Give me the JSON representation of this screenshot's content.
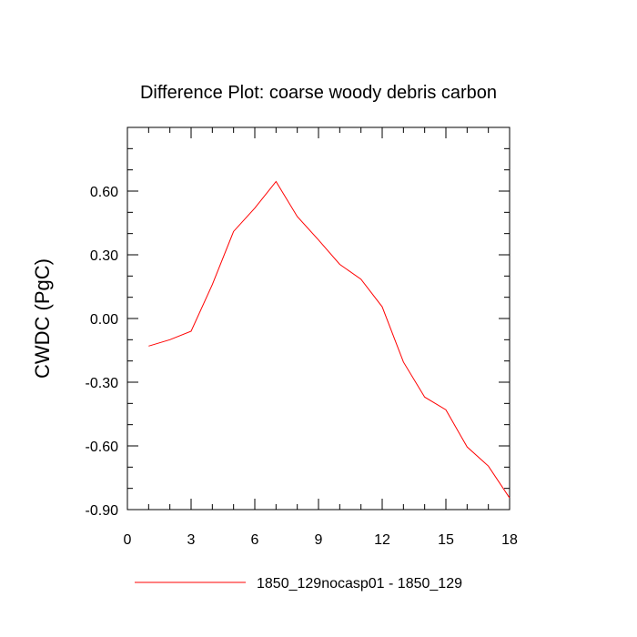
{
  "chart_data": {
    "type": "line",
    "title": "Difference Plot: coarse woody debris carbon",
    "xlabel": "",
    "ylabel": "CWDC  (PgC)",
    "xlim": [
      0,
      18
    ],
    "ylim": [
      -0.9,
      0.9
    ],
    "x_ticks": [
      0,
      3,
      6,
      9,
      12,
      15,
      18
    ],
    "x_tick_labels": [
      "0",
      "3",
      "6",
      "9",
      "12",
      "15",
      "18"
    ],
    "y_ticks": [
      -0.9,
      -0.6,
      -0.3,
      0.0,
      0.3,
      0.6
    ],
    "y_tick_labels": [
      "-0.90",
      "-0.60",
      "-0.30",
      "0.00",
      "0.30",
      "0.60"
    ],
    "grid": false,
    "legend_position": "bottom",
    "series": [
      {
        "name": "1850_129nocasp01 - 1850_129",
        "color": "#ff0000",
        "x": [
          1,
          2,
          3,
          4,
          5,
          6,
          7,
          8,
          9,
          10,
          11,
          12,
          13,
          14,
          15,
          16,
          17,
          18
        ],
        "values": [
          -0.13,
          -0.1,
          -0.06,
          0.16,
          0.41,
          0.52,
          0.645,
          0.48,
          0.37,
          0.255,
          0.185,
          0.055,
          -0.205,
          -0.37,
          -0.43,
          -0.605,
          -0.695,
          -0.845
        ]
      }
    ]
  }
}
